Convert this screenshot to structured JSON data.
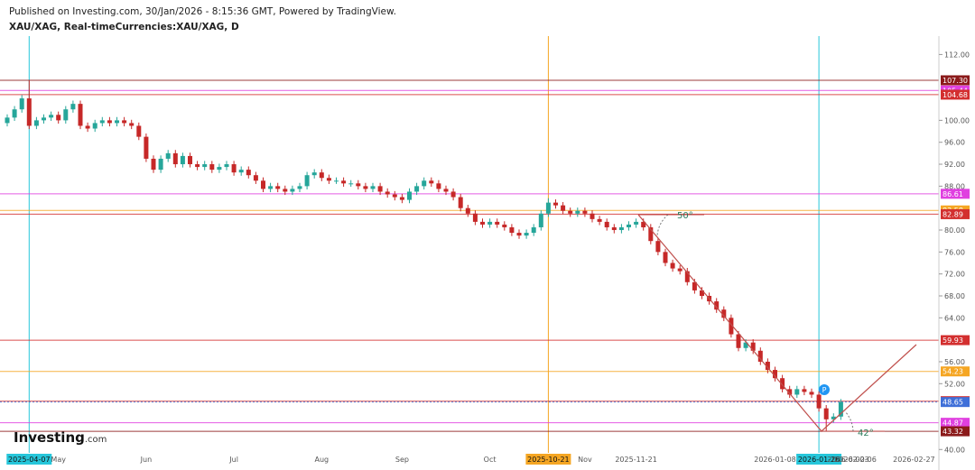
{
  "header": {
    "published": "Published on Investing.com, 30/Jan/2026 - 8:15:36 GMT, Powered by TradingView.",
    "symbol": "XAU/XAG, Real-timeCurrencies:XAU/XAG, D"
  },
  "logo": {
    "brand": "Investing",
    "suffix": ".com"
  },
  "chart_data": {
    "type": "candlestick",
    "categories": [
      null,
      null,
      null,
      "2025-04-07",
      null,
      null,
      null,
      "May",
      null,
      null,
      null,
      null,
      null,
      null,
      null,
      null,
      null,
      null,
      null,
      "Jun",
      null,
      null,
      null,
      null,
      null,
      null,
      null,
      null,
      null,
      null,
      null,
      "Jul",
      null,
      null,
      null,
      null,
      null,
      null,
      null,
      null,
      null,
      null,
      null,
      "Aug",
      null,
      null,
      null,
      null,
      null,
      null,
      null,
      null,
      null,
      null,
      "Sep",
      null,
      null,
      null,
      null,
      null,
      null,
      null,
      null,
      null,
      null,
      null,
      "Oct",
      null,
      null,
      null,
      null,
      null,
      null,
      null,
      "2025-10-21",
      null,
      null,
      null,
      null,
      "Nov",
      null,
      null,
      null,
      null,
      null,
      null,
      "2025-11-21",
      null,
      null,
      null,
      null,
      null,
      null,
      null,
      null,
      null,
      null,
      null,
      null,
      null,
      null,
      null,
      null,
      null,
      null,
      "2026-01-08",
      null,
      null,
      null,
      null,
      null,
      "2026-01-26",
      null,
      null,
      null,
      "2026-02-03",
      "2026-02-06",
      null,
      null,
      null,
      null,
      null,
      null,
      null,
      "2026-02-27"
    ],
    "label_colors": [
      null,
      null,
      null,
      "#26c6da",
      null,
      null,
      null,
      null,
      null,
      null,
      null,
      null,
      null,
      null,
      null,
      null,
      null,
      null,
      null,
      null,
      null,
      null,
      null,
      null,
      null,
      null,
      null,
      null,
      null,
      null,
      null,
      null,
      null,
      null,
      null,
      null,
      null,
      null,
      null,
      null,
      null,
      null,
      null,
      null,
      null,
      null,
      null,
      null,
      null,
      null,
      null,
      null,
      null,
      null,
      null,
      null,
      null,
      null,
      null,
      null,
      null,
      null,
      null,
      null,
      null,
      null,
      null,
      null,
      null,
      null,
      null,
      null,
      null,
      null,
      "#f5a623",
      null,
      null,
      null,
      null,
      null,
      null,
      null,
      "#26c6da",
      null,
      null,
      null,
      null,
      null,
      null,
      null,
      null,
      null,
      null,
      null,
      null,
      null,
      null,
      null,
      null,
      null,
      null,
      "#2ecc40",
      null,
      null,
      null,
      null,
      null,
      "#f5a623",
      null,
      null,
      null,
      "#26c6da",
      "#e040e0",
      null,
      null,
      null,
      null,
      null,
      null,
      null,
      "#e040e0"
    ],
    "open": [
      99.5,
      100.5,
      102,
      104,
      99,
      100,
      100.5,
      101,
      100,
      102,
      103,
      99,
      98.5,
      99.5,
      100,
      99.5,
      100,
      99.5,
      99,
      97,
      93,
      91,
      93,
      94,
      92,
      93.5,
      92,
      91.5,
      92,
      91,
      91.5,
      92,
      90.5,
      91,
      90,
      89,
      87.5,
      88,
      87.5,
      87,
      87.5,
      88,
      90,
      90.5,
      89.5,
      89,
      89,
      88.5,
      88.5,
      88,
      87.5,
      88,
      87,
      86.5,
      86,
      85.5,
      87,
      88,
      89,
      88.5,
      87.5,
      87,
      86,
      84,
      83,
      81.5,
      81,
      81.5,
      81,
      80.5,
      79.5,
      79,
      79.5,
      80.5,
      83,
      85,
      84.5,
      83.5,
      83,
      83.5,
      83,
      82,
      81.5,
      80.5,
      80,
      80.5,
      81,
      81.5,
      80.5,
      78,
      76,
      74,
      73,
      72.5,
      70.5,
      69,
      68,
      67,
      65.5,
      64,
      61,
      58.5,
      59.5,
      58,
      56,
      54.5,
      53,
      51,
      50,
      51,
      50.5,
      50,
      47.5,
      45.5,
      46,
      null,
      null,
      null,
      null,
      null,
      null,
      null,
      null,
      null,
      null
    ],
    "high": [
      101.1,
      102.6,
      104.6,
      107.3,
      100.6,
      101.1,
      101.6,
      101.6,
      102.6,
      103.6,
      103.6,
      99.6,
      100.1,
      100.6,
      100.6,
      100.6,
      100.6,
      100.1,
      99.6,
      97.6,
      93.6,
      93.6,
      94.6,
      94.6,
      94.1,
      94.1,
      92.6,
      92.6,
      92.6,
      92.1,
      92.6,
      92.6,
      91.6,
      91.6,
      90.6,
      89.6,
      88.6,
      88.6,
      88.1,
      88.1,
      88.6,
      90.6,
      91.1,
      91.1,
      90.1,
      89.6,
      89.6,
      89.1,
      89.1,
      88.6,
      88.6,
      88.6,
      87.6,
      87.1,
      86.6,
      87.6,
      88.6,
      89.6,
      89.6,
      89.1,
      88.1,
      87.6,
      86.6,
      84.6,
      83.6,
      82.1,
      82.1,
      82.1,
      81.6,
      81.1,
      80.1,
      80.1,
      81.1,
      83.6,
      85.8,
      85.6,
      85.1,
      84.1,
      84.1,
      84.1,
      83.6,
      82.6,
      82.1,
      81.1,
      81.1,
      81.6,
      82.1,
      82.1,
      81.1,
      78.6,
      76.6,
      74.6,
      73.6,
      73.1,
      71.1,
      69.6,
      68.6,
      67.6,
      66.1,
      64.6,
      61.6,
      60.1,
      60.1,
      58.6,
      56.6,
      55.1,
      53.6,
      51.6,
      51.6,
      51.6,
      51.1,
      50.6,
      48.1,
      46.6,
      49.2,
      null,
      null,
      null,
      null,
      null,
      null,
      null,
      null,
      null,
      null
    ],
    "low": [
      98.9,
      99.9,
      101.4,
      98.4,
      98.4,
      99.4,
      99.9,
      99.4,
      99.4,
      101.4,
      98.4,
      97.9,
      97.9,
      98.9,
      98.9,
      98.9,
      98.9,
      98.4,
      96.4,
      92.4,
      90.4,
      90.4,
      92.4,
      91.4,
      91.4,
      91.4,
      90.9,
      90.9,
      90.4,
      90.4,
      90.9,
      89.9,
      89.9,
      89.4,
      88.4,
      86.9,
      86.9,
      86.9,
      86.4,
      86.4,
      86.9,
      87.4,
      89.4,
      88.9,
      88.4,
      88.4,
      87.9,
      87.9,
      87.4,
      86.9,
      86.9,
      86.4,
      85.9,
      85.4,
      84.9,
      84.9,
      86.4,
      87.4,
      87.9,
      86.9,
      86.4,
      85.4,
      83.4,
      82.4,
      80.9,
      80.4,
      80.4,
      80.4,
      79.9,
      78.9,
      78.4,
      78.4,
      78.9,
      79.9,
      82.4,
      83.9,
      82.9,
      82.4,
      82.4,
      82.4,
      81.4,
      80.9,
      79.9,
      79.4,
      79.4,
      79.9,
      80.4,
      79.9,
      77.4,
      75.4,
      73.4,
      72.4,
      71.9,
      69.9,
      68.4,
      67.4,
      66.4,
      64.9,
      63.4,
      60.4,
      57.9,
      57.9,
      57.4,
      55.4,
      53.9,
      52.4,
      50.4,
      49.4,
      49.4,
      49.9,
      49.4,
      46.9,
      43.32,
      44.9,
      45.4,
      null,
      null,
      null,
      null,
      null,
      null,
      null,
      null,
      null,
      null
    ],
    "close": [
      100.5,
      102,
      104,
      99,
      100,
      100.5,
      101,
      100,
      102,
      103,
      99,
      98.5,
      99.5,
      100,
      99.5,
      100,
      99.5,
      99,
      97,
      93,
      91,
      93,
      94,
      92,
      93.5,
      92,
      91.5,
      92,
      91,
      91.5,
      92,
      90.5,
      91,
      90,
      89,
      87.5,
      88,
      87.5,
      87,
      87.5,
      88,
      90,
      90.5,
      89.5,
      89,
      89,
      88.5,
      88.5,
      88,
      87.5,
      88,
      87,
      86.5,
      86,
      85.5,
      87,
      88,
      89,
      88.5,
      87.5,
      87,
      86,
      84,
      83,
      81.5,
      81,
      81.5,
      81,
      80.5,
      79.5,
      79,
      79.5,
      80.5,
      83,
      85,
      84.5,
      83.5,
      83,
      83.5,
      83,
      82,
      81.5,
      80.5,
      80,
      80.5,
      81,
      81.5,
      80.5,
      78,
      76,
      74,
      73,
      72.5,
      70.5,
      69,
      68,
      67,
      65.5,
      64,
      61,
      58.5,
      59.5,
      58,
      56,
      54.5,
      53,
      51,
      50,
      51,
      50.5,
      50,
      47.5,
      45.5,
      46,
      48.65,
      null,
      null,
      null,
      null,
      null,
      null,
      null,
      null,
      null,
      null
    ],
    "up_color": "#26a69a",
    "down_color": "#c62828",
    "ylim": [
      38.4,
      117
    ],
    "yticks": [
      {
        "value": 112,
        "label": "112.00"
      },
      {
        "value": 100,
        "label": "100.00"
      },
      {
        "value": 96,
        "label": "96.00"
      },
      {
        "value": 92,
        "label": "92.00"
      },
      {
        "value": 88,
        "label": "88.00"
      },
      {
        "value": 80,
        "label": "80.00"
      },
      {
        "value": 76,
        "label": "76.00"
      },
      {
        "value": 72,
        "label": "72.00"
      },
      {
        "value": 68,
        "label": "68.00"
      },
      {
        "value": 64,
        "label": "64.00"
      },
      {
        "value": 56,
        "label": "56.00"
      },
      {
        "value": 52,
        "label": "52.00"
      },
      {
        "value": 40,
        "label": "40.00"
      }
    ],
    "levels": [
      {
        "value": 107.3,
        "label": "107.30",
        "color": "#8b1a1a"
      },
      {
        "value": 105.44,
        "label": "105.44",
        "color": "#e040e0"
      },
      {
        "value": 104.68,
        "label": "104.68",
        "color": "#d32f2f"
      },
      {
        "value": 86.61,
        "label": "86.61",
        "color": "#e040e0"
      },
      {
        "value": 83.58,
        "label": "83.58",
        "color": "#f5a623"
      },
      {
        "value": 82.89,
        "label": "82.89",
        "color": "#d32f2f"
      },
      {
        "value": 59.93,
        "label": "59.93",
        "color": "#d32f2f"
      },
      {
        "value": 54.23,
        "label": "54.23",
        "color": "#f5a623"
      },
      {
        "value": 48.81,
        "label": "48.81",
        "color": "#d32f2f"
      },
      {
        "value": 48.65,
        "label": "48.65",
        "color": "#3f6fd8",
        "style": "dotted"
      },
      {
        "value": 44.87,
        "label": "44.87",
        "color": "#e040e0"
      },
      {
        "value": 43.32,
        "label": "43.32",
        "color": "#8b1a1a"
      }
    ],
    "annotations": {
      "angle_top": "50°",
      "angle_bottom": "42°",
      "pivot": "P"
    }
  }
}
